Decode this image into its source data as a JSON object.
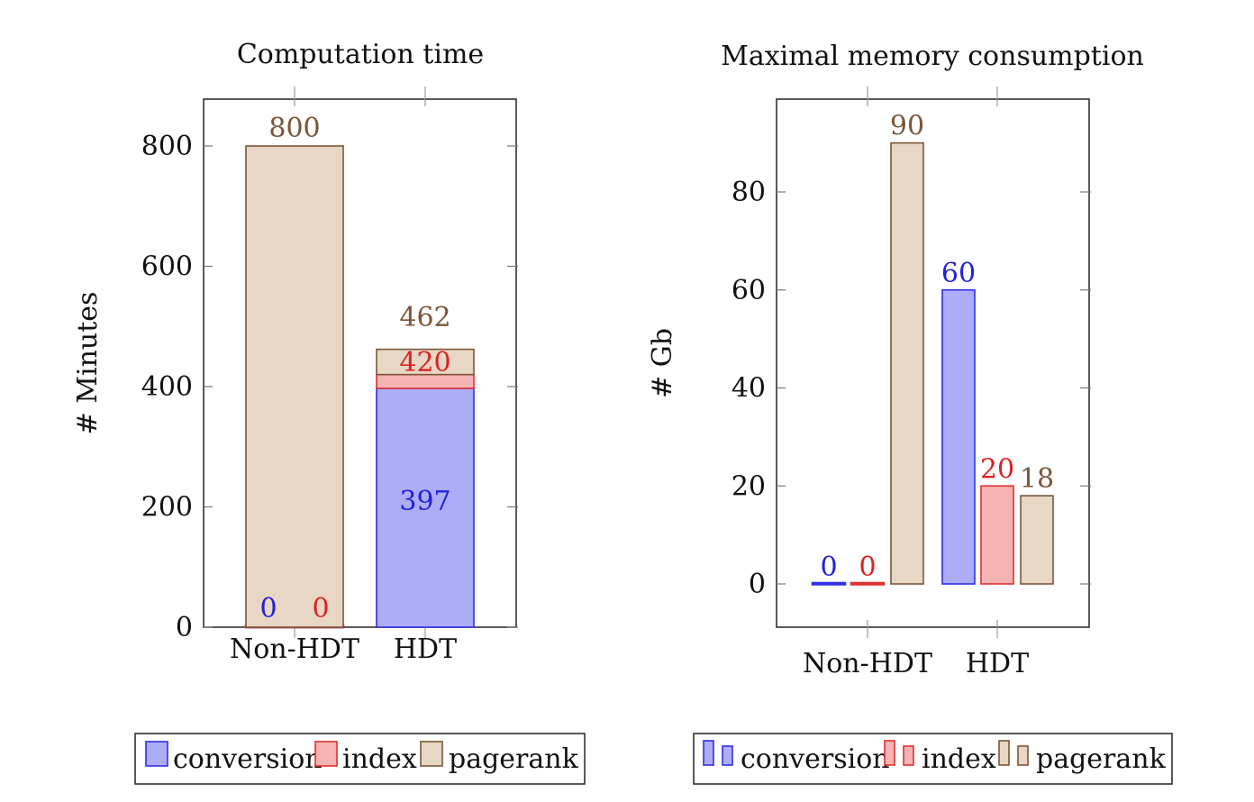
{
  "colors": {
    "conversion": {
      "fill": "#adadf7",
      "stroke": "#2f2fe6",
      "label": "#2222dd"
    },
    "index": {
      "fill": "#f5b3b3",
      "stroke": "#e03030",
      "label": "#dd2222"
    },
    "pagerank": {
      "fill": "#e8d7c4",
      "stroke": "#7a5638",
      "label": "#7a5638"
    }
  },
  "chart_data": [
    {
      "type": "bar",
      "stacked": true,
      "title": "Computation time",
      "ylabel": "# Minutes",
      "categories": [
        "Non-HDT",
        "HDT"
      ],
      "ylim": [
        0,
        880
      ],
      "yticks": [
        0,
        200,
        400,
        600,
        800
      ],
      "series": [
        {
          "name": "conversion",
          "key": "conversion",
          "values": [
            0,
            397
          ]
        },
        {
          "name": "index",
          "key": "index",
          "values": [
            0,
            23
          ]
        },
        {
          "name": "pagerank",
          "key": "pagerank",
          "values": [
            800,
            42
          ]
        }
      ],
      "data_labels": [
        {
          "category": "Non-HDT",
          "text": "0",
          "key": "conversion"
        },
        {
          "category": "Non-HDT",
          "text": "0",
          "key": "index"
        },
        {
          "category": "Non-HDT",
          "text": "800",
          "key": "pagerank"
        },
        {
          "category": "HDT",
          "text": "397",
          "key": "conversion"
        },
        {
          "category": "HDT",
          "text": "420",
          "key": "index"
        },
        {
          "category": "HDT",
          "text": "462",
          "key": "pagerank"
        }
      ],
      "legend": [
        "conversion",
        "index",
        "pagerank"
      ],
      "grid": false
    },
    {
      "type": "bar",
      "stacked": false,
      "title": "Maximal memory consumption",
      "ylabel": "# Gb",
      "categories": [
        "Non-HDT",
        "HDT"
      ],
      "ylim": [
        -9,
        99
      ],
      "yticks": [
        0,
        20,
        40,
        60,
        80
      ],
      "series": [
        {
          "name": "conversion",
          "key": "conversion",
          "values": [
            0,
            60
          ]
        },
        {
          "name": "index",
          "key": "index",
          "values": [
            0,
            20
          ]
        },
        {
          "name": "pagerank",
          "key": "pagerank",
          "values": [
            90,
            18
          ]
        }
      ],
      "legend": [
        "conversion",
        "index",
        "pagerank"
      ],
      "grid": false
    }
  ]
}
